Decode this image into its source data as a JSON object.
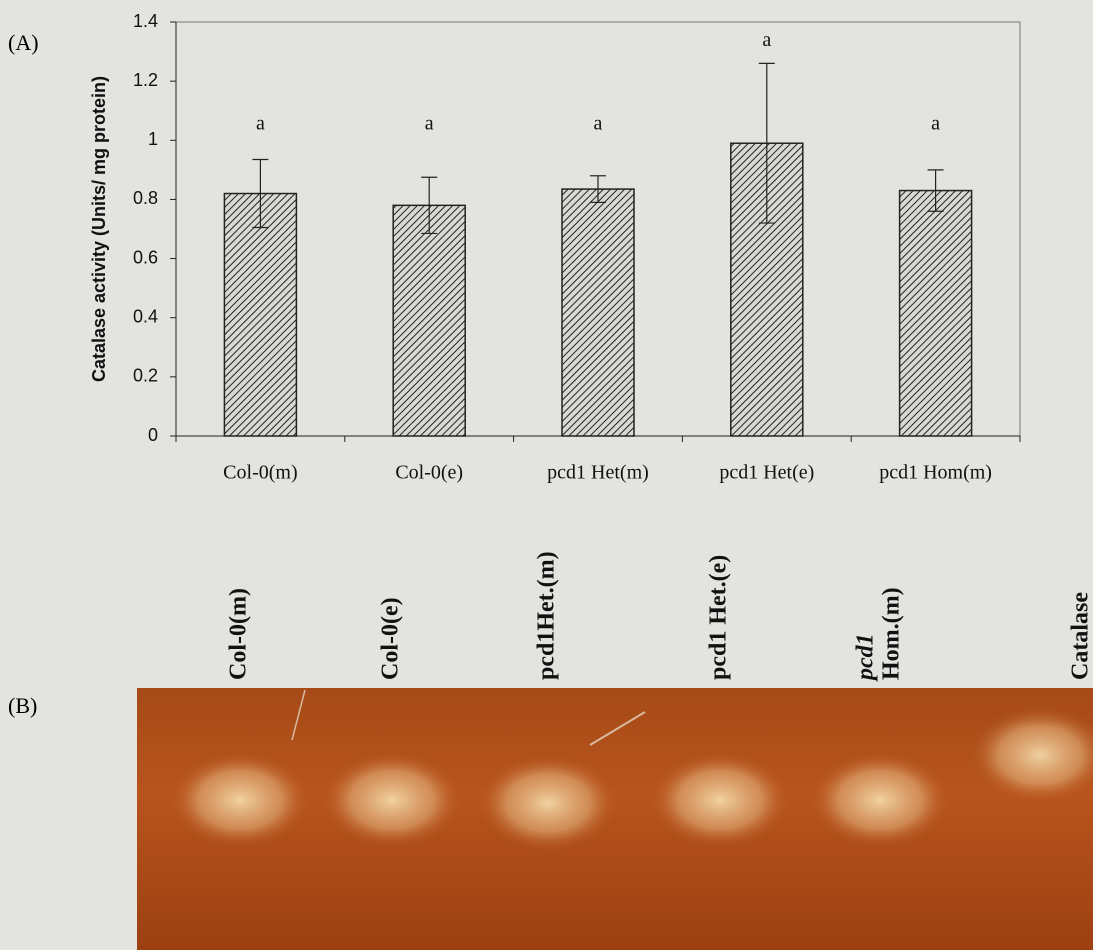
{
  "chart_data": {
    "type": "bar",
    "panel_label": "(A)",
    "y_label": "Catalase activity (Units/ mg protein)",
    "categories": [
      "Col-0(m)",
      "Col-0(e)",
      "pcd1 Het(m)",
      "pcd1 Het(e)",
      "pcd1 Hom(m)"
    ],
    "values": [
      0.82,
      0.78,
      0.835,
      0.99,
      0.83
    ],
    "errors": [
      0.115,
      0.095,
      0.045,
      0.27,
      0.07
    ],
    "annotations": [
      "a",
      "a",
      "a",
      "a",
      "a"
    ],
    "color": "#9a9a96",
    "ylim": [
      0,
      1.4
    ],
    "yticks": [
      0,
      0.2,
      0.4,
      0.6,
      0.8,
      1,
      1.2,
      1.4
    ]
  },
  "gel": {
    "panel_label": "(B)",
    "lanes": [
      {
        "lines": [
          "Col-0(m)"
        ]
      },
      {
        "lines": [
          "Col-0(e)"
        ]
      },
      {
        "lines": [
          "pcd1Het.(m)"
        ]
      },
      {
        "lines": [
          "pcd1 Het.(e)"
        ]
      },
      {
        "lines": [
          "pcd1",
          "Hom.(m)"
        ]
      },
      {
        "lines": [
          "Catalase"
        ]
      }
    ]
  }
}
